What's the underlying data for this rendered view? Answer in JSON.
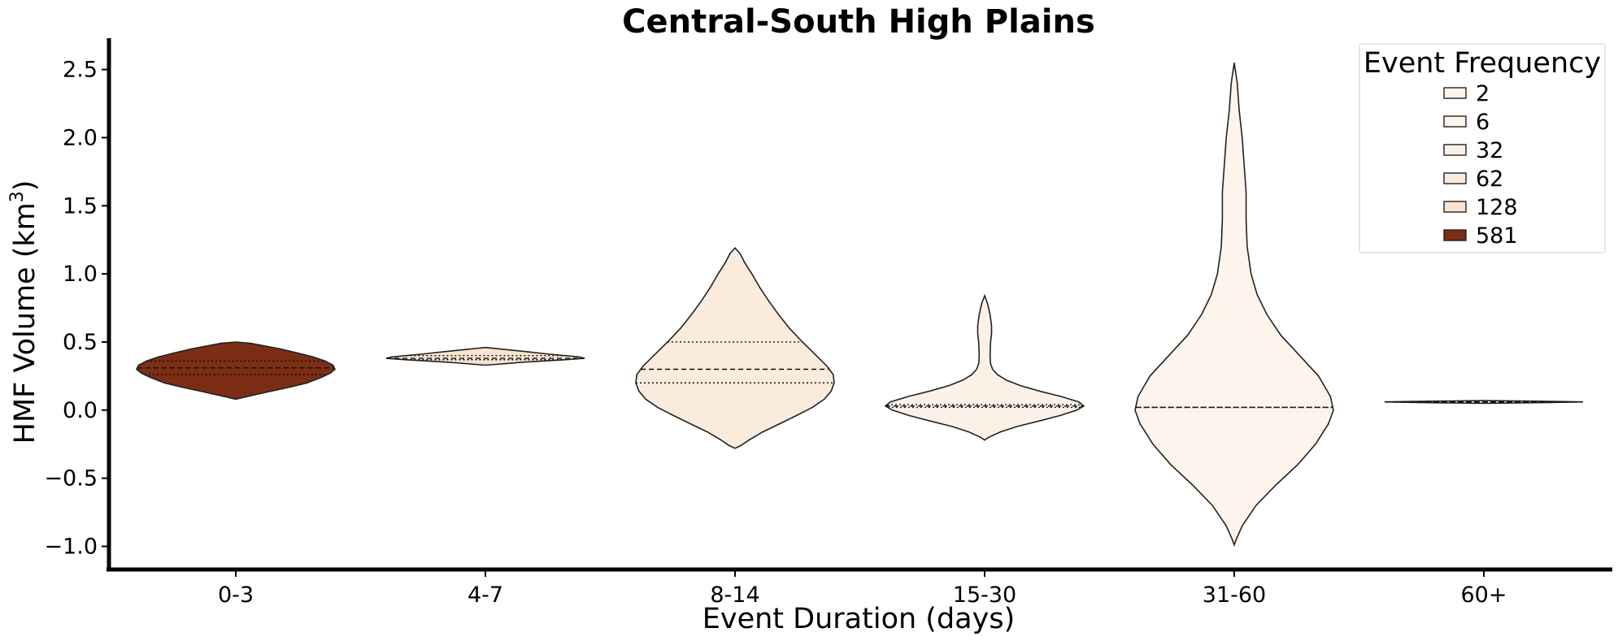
{
  "chart_data": {
    "type": "violin",
    "title": "Central-South High Plains",
    "xlabel": "Event Duration (days)",
    "ylabel_main": "HMF Volume (km",
    "ylabel_sup": "3",
    "ylabel_close": ")",
    "ylim": [
      -1.17,
      2.73
    ],
    "yticks": [
      -1.0,
      -0.5,
      0.0,
      0.5,
      1.0,
      1.5,
      2.0,
      2.5
    ],
    "ytick_labels": [
      "−1.0",
      "−0.5",
      "0.0",
      "0.5",
      "1.0",
      "1.5",
      "2.0",
      "2.5"
    ],
    "grid": false,
    "legend": {
      "title": "Event Frequency",
      "placement": "top-right",
      "entries": [
        {
          "label": "2",
          "color": "#fff5eb"
        },
        {
          "label": "6",
          "color": "#fdf4ec"
        },
        {
          "label": "32",
          "color": "#fcf1e6"
        },
        {
          "label": "62",
          "color": "#fbebdc"
        },
        {
          "label": "128",
          "color": "#f9e4d1"
        },
        {
          "label": "581",
          "color": "#7b2e14"
        }
      ]
    },
    "categories": [
      {
        "label": "0-3",
        "frequency": 581,
        "color": "#7b2e14",
        "profile": [
          [
            0.08,
            0.0
          ],
          [
            0.1,
            0.12
          ],
          [
            0.13,
            0.3
          ],
          [
            0.17,
            0.55
          ],
          [
            0.2,
            0.72
          ],
          [
            0.24,
            0.86
          ],
          [
            0.27,
            0.95
          ],
          [
            0.3,
            1.0
          ],
          [
            0.33,
            0.98
          ],
          [
            0.36,
            0.9
          ],
          [
            0.39,
            0.78
          ],
          [
            0.42,
            0.62
          ],
          [
            0.45,
            0.44
          ],
          [
            0.47,
            0.3
          ],
          [
            0.49,
            0.15
          ],
          [
            0.5,
            0.0
          ]
        ],
        "quartiles": [
          0.26,
          0.31,
          0.36
        ]
      },
      {
        "label": "4-7",
        "frequency": 128,
        "color": "#f9e4d1",
        "profile": [
          [
            0.33,
            0.0
          ],
          [
            0.35,
            0.35
          ],
          [
            0.37,
            0.8
          ],
          [
            0.38,
            1.0
          ],
          [
            0.39,
            0.95
          ],
          [
            0.41,
            0.65
          ],
          [
            0.43,
            0.4
          ],
          [
            0.445,
            0.2
          ],
          [
            0.46,
            0.0
          ]
        ],
        "quartiles": [
          0.37,
          0.38,
          0.4
        ]
      },
      {
        "label": "8-14",
        "frequency": 62,
        "color": "#fbebdc",
        "profile": [
          [
            -0.28,
            0.0
          ],
          [
            -0.26,
            0.06
          ],
          [
            -0.22,
            0.14
          ],
          [
            -0.16,
            0.28
          ],
          [
            -0.1,
            0.45
          ],
          [
            -0.04,
            0.62
          ],
          [
            0.02,
            0.78
          ],
          [
            0.08,
            0.9
          ],
          [
            0.14,
            0.97
          ],
          [
            0.2,
            1.0
          ],
          [
            0.26,
            0.99
          ],
          [
            0.32,
            0.93
          ],
          [
            0.4,
            0.82
          ],
          [
            0.5,
            0.68
          ],
          [
            0.6,
            0.55
          ],
          [
            0.7,
            0.44
          ],
          [
            0.8,
            0.34
          ],
          [
            0.9,
            0.25
          ],
          [
            1.0,
            0.17
          ],
          [
            1.08,
            0.1
          ],
          [
            1.15,
            0.05
          ],
          [
            1.19,
            0.0
          ]
        ],
        "quartiles": [
          0.2,
          0.3,
          0.5
        ]
      },
      {
        "label": "15-30",
        "frequency": 32,
        "color": "#fcf1e6",
        "profile": [
          [
            -0.22,
            0.0
          ],
          [
            -0.2,
            0.04
          ],
          [
            -0.16,
            0.16
          ],
          [
            -0.12,
            0.33
          ],
          [
            -0.08,
            0.55
          ],
          [
            -0.04,
            0.76
          ],
          [
            0.0,
            0.93
          ],
          [
            0.03,
            1.0
          ],
          [
            0.06,
            0.95
          ],
          [
            0.1,
            0.77
          ],
          [
            0.14,
            0.55
          ],
          [
            0.18,
            0.36
          ],
          [
            0.22,
            0.22
          ],
          [
            0.26,
            0.13
          ],
          [
            0.3,
            0.08
          ],
          [
            0.34,
            0.06
          ],
          [
            0.4,
            0.055
          ],
          [
            0.5,
            0.06
          ],
          [
            0.56,
            0.07
          ],
          [
            0.62,
            0.07
          ],
          [
            0.7,
            0.055
          ],
          [
            0.78,
            0.03
          ],
          [
            0.84,
            0.0
          ]
        ],
        "quartiles": [
          0.02,
          0.03,
          0.04
        ]
      },
      {
        "label": "31-60",
        "frequency": 6,
        "color": "#fdf4ec",
        "profile": [
          [
            -0.99,
            0.0
          ],
          [
            -0.95,
            0.02
          ],
          [
            -0.85,
            0.08
          ],
          [
            -0.7,
            0.22
          ],
          [
            -0.55,
            0.42
          ],
          [
            -0.4,
            0.64
          ],
          [
            -0.25,
            0.82
          ],
          [
            -0.1,
            0.95
          ],
          [
            0.0,
            1.0
          ],
          [
            0.1,
            0.97
          ],
          [
            0.25,
            0.85
          ],
          [
            0.4,
            0.66
          ],
          [
            0.55,
            0.47
          ],
          [
            0.7,
            0.33
          ],
          [
            0.85,
            0.23
          ],
          [
            1.0,
            0.17
          ],
          [
            1.2,
            0.13
          ],
          [
            1.4,
            0.12
          ],
          [
            1.6,
            0.12
          ],
          [
            1.8,
            0.1
          ],
          [
            2.0,
            0.08
          ],
          [
            2.2,
            0.05
          ],
          [
            2.4,
            0.03
          ],
          [
            2.55,
            0.0
          ]
        ],
        "quartiles": [
          0.02,
          0.02,
          0.02
        ]
      },
      {
        "label": "60+",
        "frequency": 2,
        "color": "#fff5eb",
        "profile": [
          [
            0.05,
            0.0
          ],
          [
            0.055,
            0.6
          ],
          [
            0.06,
            1.0
          ],
          [
            0.065,
            0.6
          ],
          [
            0.07,
            0.0
          ]
        ],
        "quartiles": [
          0.06,
          0.06,
          0.06
        ]
      }
    ]
  }
}
